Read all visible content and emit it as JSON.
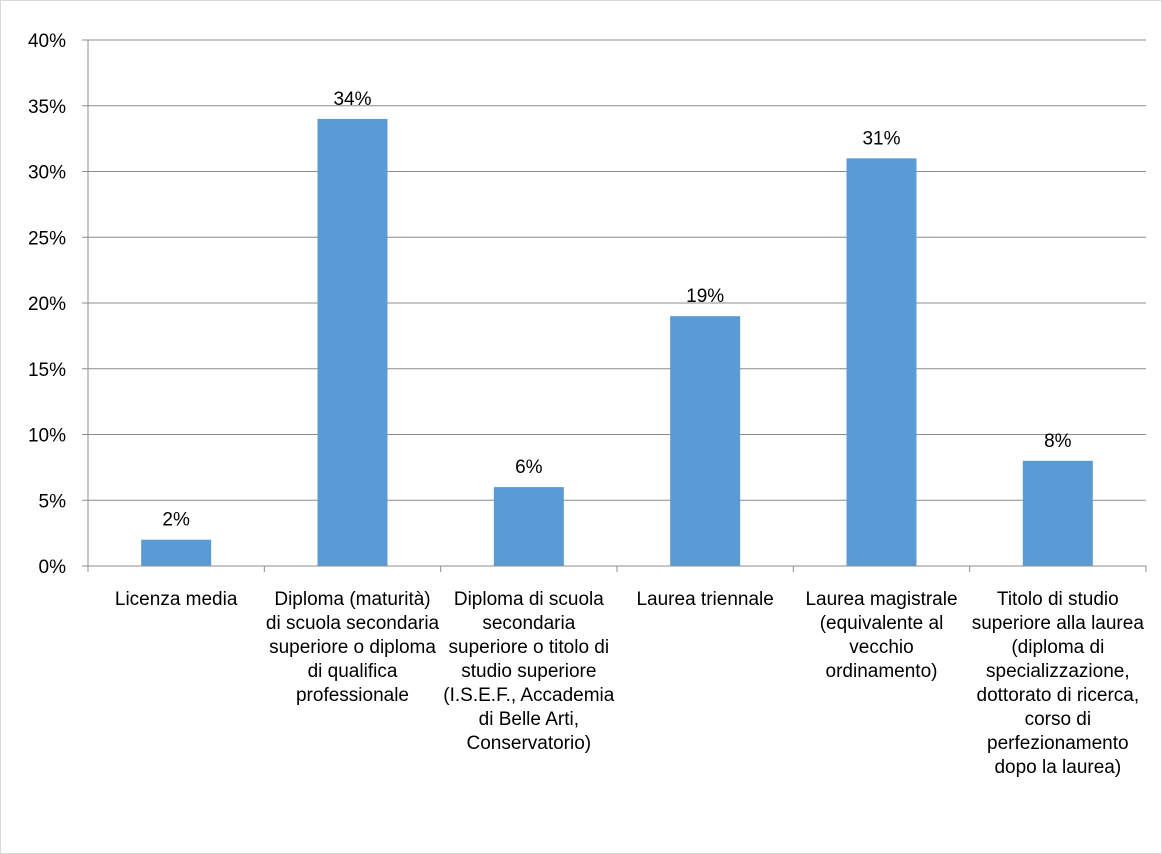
{
  "chart_data": {
    "type": "bar",
    "title": "",
    "xlabel": "",
    "ylabel": "",
    "ylim": [
      0,
      40
    ],
    "y_ticks": [
      0,
      5,
      10,
      15,
      20,
      25,
      30,
      35,
      40
    ],
    "y_tick_labels": [
      "0%",
      "5%",
      "10%",
      "15%",
      "20%",
      "25%",
      "30%",
      "35%",
      "40%"
    ],
    "grid": true,
    "legend": "none",
    "bar_color": "#5b9bd5",
    "categories": [
      "Licenza media",
      "Diploma (maturità) di scuola secondaria superiore o diploma di qualifica professionale",
      "Diploma di scuola secondaria superiore o titolo di studio superiore (I.S.E.F., Accademia di Belle Arti, Conservatorio)",
      "Laurea triennale",
      "Laurea magistrale (equivalente al vecchio ordinamento)",
      "Titolo di studio superiore alla laurea (diploma di specializzazione, dottorato di ricerca, corso di perfezionamento dopo la laurea)"
    ],
    "values": [
      2,
      34,
      6,
      19,
      31,
      8
    ],
    "data_labels": [
      "2%",
      "34%",
      "6%",
      "19%",
      "31%",
      "8%"
    ]
  }
}
